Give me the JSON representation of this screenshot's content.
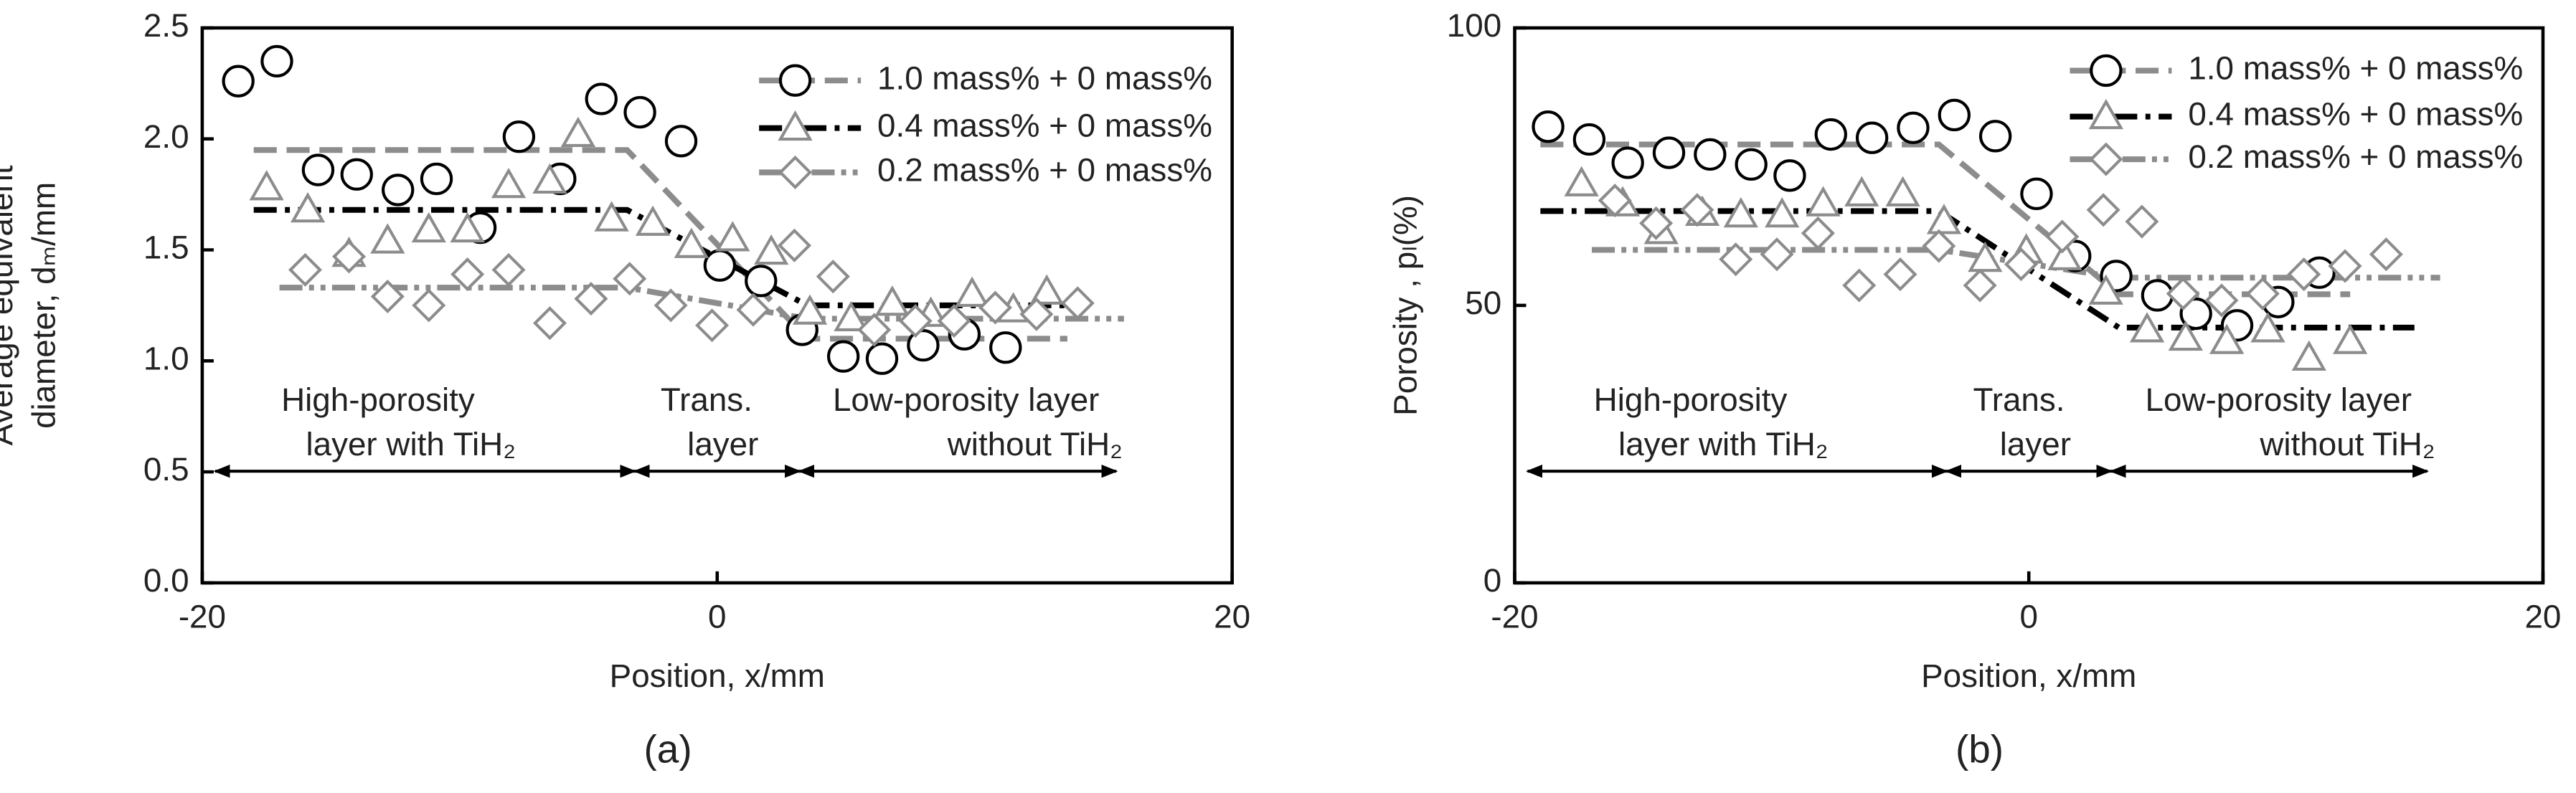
{
  "chart_data": [
    {
      "type": "scatter",
      "panel_label": "(a)",
      "y_label": [
        "Average equivalent",
        "diameter, dₘ/mm"
      ],
      "x_label": "Position, x/mm",
      "xlim": [
        -20,
        20
      ],
      "xticks": [
        -20,
        0,
        20
      ],
      "ylim": [
        0,
        2.5
      ],
      "yticks": [
        {
          "value": 0,
          "label": "0.0"
        },
        0.5,
        {
          "value": 1,
          "label": "1.0"
        },
        1.5,
        {
          "value": 2,
          "label": "2.0"
        },
        2.5
      ],
      "grid": false,
      "legend": "upper right",
      "regions": [
        {
          "lines": [
            "High-porosity",
            "layer with TiH₂"
          ]
        },
        {
          "lines": [
            "Trans.",
            "layer"
          ]
        },
        {
          "lines": [
            "Low-porosity layer",
            "without TiH₂"
          ]
        }
      ],
      "series": [
        {
          "name": "1.0 mass% + 0 mass%",
          "marker": "circle",
          "color": "#000000",
          "x": [
            -18.6,
            -17.1,
            -15.5,
            -14.0,
            -12.4,
            -10.9,
            -9.2,
            -7.7,
            -6.1,
            -4.5,
            -3.0,
            -1.4,
            0.1,
            1.7,
            3.3,
            4.9,
            6.4,
            8.0,
            9.6,
            11.2
          ],
          "values": [
            2.26,
            2.35,
            1.86,
            1.84,
            1.77,
            1.82,
            1.6,
            2.01,
            1.82,
            2.18,
            2.12,
            1.99,
            1.43,
            1.36,
            1.14,
            1.02,
            1.01,
            1.07,
            1.12,
            1.06
          ],
          "fit": {
            "color": "#8c8c8c",
            "dash": "dashed",
            "x": [
              -18,
              -3.5,
              3.5,
              13.6
            ],
            "values": [
              1.95,
              1.95,
              1.1,
              1.1
            ]
          }
        },
        {
          "name": "0.4 mass% + 0 mass%",
          "marker": "triangle",
          "color": "#8c8c8c",
          "x": [
            -17.5,
            -15.9,
            -14.3,
            -12.8,
            -11.2,
            -9.7,
            -8.1,
            -6.5,
            -5.4,
            -4.1,
            -2.5,
            -1.0,
            0.6,
            2.1,
            3.6,
            5.2,
            6.8,
            8.3,
            9.9,
            11.5,
            12.8
          ],
          "values": [
            1.78,
            1.68,
            1.48,
            1.54,
            1.59,
            1.59,
            1.79,
            1.81,
            2.02,
            1.64,
            1.62,
            1.52,
            1.55,
            1.49,
            1.22,
            1.19,
            1.26,
            1.21,
            1.3,
            1.23,
            1.31
          ],
          "fit": {
            "color": "#000000",
            "dash": "dash-dot",
            "x": [
              -18,
              -3.5,
              3.5,
              14
            ],
            "values": [
              1.68,
              1.68,
              1.25,
              1.25
            ]
          }
        },
        {
          "name": "0.2 mass% + 0 mass%",
          "marker": "diamond",
          "color": "#8c8c8c",
          "x": [
            -16.0,
            -14.3,
            -12.8,
            -11.2,
            -9.7,
            -8.1,
            -6.5,
            -4.9,
            -3.4,
            -1.8,
            -0.2,
            1.4,
            3.0,
            4.5,
            6.1,
            7.7,
            9.2,
            10.8,
            12.4,
            14.0
          ],
          "values": [
            1.41,
            1.47,
            1.29,
            1.25,
            1.39,
            1.41,
            1.17,
            1.28,
            1.37,
            1.25,
            1.16,
            1.23,
            1.52,
            1.38,
            1.14,
            1.18,
            1.18,
            1.24,
            1.21,
            1.26
          ],
          "fit": {
            "color": "#8c8c8c",
            "dash": "dash-dot-dot",
            "x": [
              -17,
              -3.5,
              3.5,
              15.8
            ],
            "values": [
              1.33,
              1.33,
              1.19,
              1.19
            ]
          }
        }
      ]
    },
    {
      "type": "scatter",
      "panel_label": "(b)",
      "y_label": [
        "Porosity , pₗ(%)"
      ],
      "x_label": "Position, x/mm",
      "xlim": [
        -20,
        20
      ],
      "xticks": [
        -20,
        0,
        20
      ],
      "ylim": [
        0,
        100
      ],
      "yticks": [
        0,
        50,
        100
      ],
      "grid": false,
      "legend": "upper right",
      "regions": [
        {
          "lines": [
            "High-porosity",
            "layer with TiH₂"
          ]
        },
        {
          "lines": [
            "Trans.",
            "layer"
          ]
        },
        {
          "lines": [
            "Low-porosity layer",
            "without TiH₂"
          ]
        }
      ],
      "series": [
        {
          "name": "1.0 mass% + 0 mass%",
          "marker": "circle",
          "color": "#000000",
          "x": [
            -18.7,
            -17.1,
            -15.6,
            -14.0,
            -12.4,
            -10.8,
            -9.3,
            -7.7,
            -6.1,
            -4.5,
            -2.9,
            -1.3,
            0.3,
            1.8,
            3.4,
            5.0,
            6.5,
            8.1,
            9.7,
            11.3
          ],
          "values": [
            82.2,
            79.9,
            75.7,
            77.5,
            77.2,
            75.4,
            73.4,
            80.8,
            80.2,
            82.0,
            84.3,
            80.5,
            70.1,
            58.9,
            55.3,
            51.8,
            48.5,
            46.4,
            50.6,
            55.9
          ],
          "fit": {
            "color": "#8c8c8c",
            "dash": "dashed",
            "x": [
              -19,
              -3.5,
              3.5,
              12.5
            ],
            "values": [
              79,
              79,
              52,
              52
            ]
          }
        },
        {
          "name": "0.4 mass% + 0 mass%",
          "marker": "triangle",
          "color": "#8c8c8c",
          "x": [
            -17.4,
            -15.8,
            -14.3,
            -12.7,
            -11.2,
            -9.6,
            -8.0,
            -6.5,
            -4.9,
            -3.3,
            -1.7,
            -0.1,
            1.4,
            3.0,
            4.6,
            6.1,
            7.7,
            9.3,
            10.9,
            12.5
          ],
          "values": [
            71.9,
            68.3,
            63.3,
            66.6,
            66.3,
            66.3,
            68.3,
            70.1,
            70.1,
            65.1,
            58.3,
            59.8,
            58.6,
            52.4,
            45.6,
            44.1,
            43.5,
            45.6,
            40.5,
            43.5
          ],
          "fit": {
            "color": "#000000",
            "dash": "dash-dot",
            "x": [
              -19,
              -3.5,
              3.5,
              15
            ],
            "values": [
              67,
              67,
              46,
              46
            ]
          }
        },
        {
          "name": "0.2 mass% + 0 mass%",
          "marker": "diamond",
          "color": "#8c8c8c",
          "x": [
            -16.1,
            -14.5,
            -12.9,
            -11.4,
            -9.8,
            -8.2,
            -6.6,
            -5.0,
            -3.5,
            -1.9,
            -0.3,
            1.3,
            2.9,
            4.4,
            6.0,
            7.5,
            9.1,
            10.7,
            12.3,
            13.9
          ],
          "values": [
            68.9,
            64.8,
            67.2,
            58.3,
            59.2,
            63.0,
            53.6,
            55.6,
            60.7,
            53.6,
            57.4,
            62.4,
            67.2,
            65.1,
            52.1,
            50.9,
            52.1,
            55.6,
            57.1,
            59.2
          ],
          "fit": {
            "color": "#8c8c8c",
            "dash": "dash-dot-dot",
            "x": [
              -17,
              -3.5,
              3.5,
              16
            ],
            "values": [
              60,
              60,
              55,
              55
            ]
          }
        }
      ]
    }
  ]
}
